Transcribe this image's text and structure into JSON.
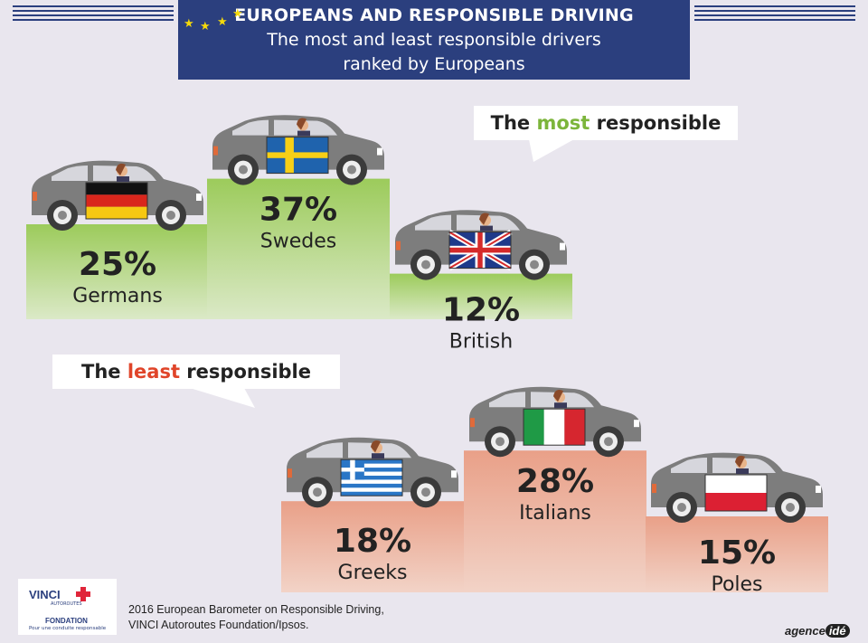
{
  "header": {
    "title": "EUROPEANS AND RESPONSIBLE DRIVING",
    "subtitle_line1": "The most and least responsible drivers",
    "subtitle_line2": "ranked by Europeans"
  },
  "colors": {
    "banner": "#2b3f7e",
    "most": "#7cb53b",
    "least": "#e0452a",
    "podium_green": "#9ccb5b",
    "podium_salmon": "#e9a088",
    "car": "#7d7d7d"
  },
  "chart_data": [
    {
      "type": "bar",
      "title_prefix": "The ",
      "title_highlight": "most",
      "title_suffix": " responsible",
      "categories": [
        "Germans",
        "Swedes",
        "British"
      ],
      "values": [
        25,
        37,
        12
      ],
      "value_labels": [
        "25%",
        "37%",
        "12%"
      ],
      "flags": [
        "germany-flag",
        "sweden-flag",
        "uk-flag"
      ]
    },
    {
      "type": "bar",
      "title_prefix": "The ",
      "title_highlight": "least",
      "title_suffix": " responsible",
      "categories": [
        "Greeks",
        "Italians",
        "Poles"
      ],
      "values": [
        18,
        28,
        15
      ],
      "value_labels": [
        "18%",
        "28%",
        "15%"
      ],
      "flags": [
        "greece-flag",
        "italy-flag",
        "poland-flag"
      ]
    }
  ],
  "footer": {
    "source_line1": "2016 European Barometer on Responsible Driving,",
    "source_line2": "VINCI Autoroutes Foundation/Ipsos.",
    "logo_name": "VINCI",
    "logo_sub": "AUTOROUTES",
    "logo_foundation": "FONDATION",
    "logo_tagline": "Pour une conduite responsable",
    "agency_a": "agence",
    "agency_b": "idé"
  }
}
